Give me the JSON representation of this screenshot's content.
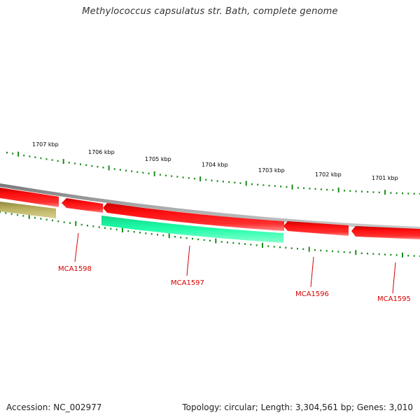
{
  "title": "Methylococcus capsulatus str. Bath, complete genome",
  "footer": {
    "accession": "Accession: NC_002977",
    "summary": "Topology: circular; Length: 3,304,561 bp; Genes: 3,010"
  },
  "colors": {
    "backbone": "#8a8a8a",
    "forward_gene": "#ff0000",
    "reverse_gene_green": "#1dfa9f",
    "reverse_gene_olive": "#b5ad5a",
    "ticks": "#1a8a1a",
    "gene_label": "#d40000",
    "kbp_label": "#000000"
  },
  "scale_labels": [
    "1707 kbp",
    "1706 kbp",
    "1705 kbp",
    "1704 kbp",
    "1703 kbp",
    "1702 kbp",
    "1701 kbp"
  ],
  "gene_labels": [
    "MCA1598",
    "MCA1597",
    "MCA1596",
    "MCA1595"
  ]
}
